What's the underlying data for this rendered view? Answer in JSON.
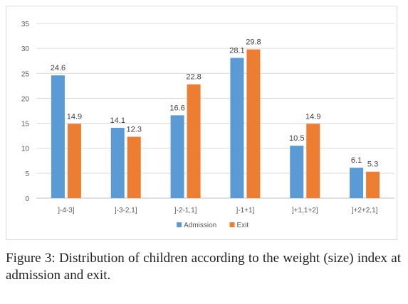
{
  "chart_data": {
    "type": "bar",
    "categories": [
      "]-4-3]",
      "]-3-2,1]",
      "]-2-1,1]",
      "]-1+1]",
      "]+1,1+2]",
      "]+2+2,1]"
    ],
    "series": [
      {
        "name": "Admission",
        "values": [
          24.6,
          14.1,
          16.6,
          28.1,
          10.5,
          6.1
        ],
        "color": "#5b9bd5"
      },
      {
        "name": "Exit",
        "values": [
          14.9,
          12.3,
          22.8,
          29.8,
          14.9,
          5.3
        ],
        "color": "#ed7d31"
      }
    ],
    "value_labels": {
      "Admission": [
        "24.6",
        "14.1",
        "16.6",
        "28.1",
        "10.5",
        "6.1"
      ],
      "Exit": [
        "14.9",
        "12.3",
        "22.8",
        "29.8",
        "14.9",
        "5.3"
      ]
    },
    "yticks": [
      "0",
      "5",
      "10",
      "15",
      "20",
      "25",
      "30",
      "35"
    ],
    "ylim": [
      0,
      35
    ],
    "grid": true,
    "legend_position": "bottom-center",
    "title": "",
    "xlabel": "",
    "ylabel": ""
  },
  "caption": {
    "label": "Figure 3",
    "text": ": Distribution of children according to the weight (size) index at admission and exit."
  }
}
